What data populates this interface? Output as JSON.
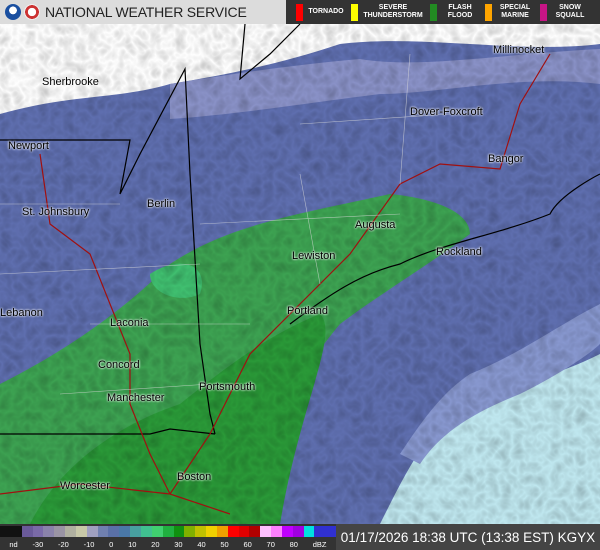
{
  "header": {
    "title": "NATIONAL WEATHER SERVICE",
    "logos": [
      "noaa-logo",
      "nws-logo"
    ]
  },
  "warnings": [
    {
      "label": "TORNADO",
      "color": "#ff0000"
    },
    {
      "label": "SEVERE\nTHUNDERSTORM",
      "color": "#ffff00"
    },
    {
      "label": "FLASH\nFLOOD",
      "color": "#228b22"
    },
    {
      "label": "SPECIAL\nMARINE",
      "color": "#ffa500"
    },
    {
      "label": "SNOW\nSQUALL",
      "color": "#c71585"
    }
  ],
  "map": {
    "cities": [
      "Sherbrooke",
      "Millinocket",
      "Dover-Foxcroft",
      "Newport",
      "Bangor",
      "St. Johnsbury",
      "Berlin",
      "Augusta",
      "Rockland",
      "Lewiston",
      "Lebanon",
      "Portland",
      "Laconia",
      "Concord",
      "Portsmouth",
      "Manchester",
      "Worcester",
      "Boston"
    ]
  },
  "legend": {
    "ticks": [
      "nd",
      "-30",
      "-20",
      "-10",
      "0",
      "10",
      "20",
      "30",
      "40",
      "50",
      "60",
      "70",
      "80",
      "dBZ"
    ],
    "colors": [
      "#111111",
      "#111111",
      "#6a5a9a",
      "#7a6aa8",
      "#8a82aa",
      "#9a94a4",
      "#b0b0a0",
      "#c8c8a8",
      "#a0a0c0",
      "#7080b0",
      "#5a70a8",
      "#4a78a8",
      "#48a0a0",
      "#40c090",
      "#40d070",
      "#20b040",
      "#109010",
      "#80b000",
      "#c0c000",
      "#f0d000",
      "#f0a000",
      "#ff0000",
      "#e00000",
      "#b00000",
      "#ffc0ff",
      "#ff80ff",
      "#c000ff",
      "#a000e0",
      "#00e0e0",
      "#3030d0",
      "#3030d0"
    ]
  },
  "timestamp": "01/17/2026 18:38 UTC (13:38 EST) KGYX"
}
